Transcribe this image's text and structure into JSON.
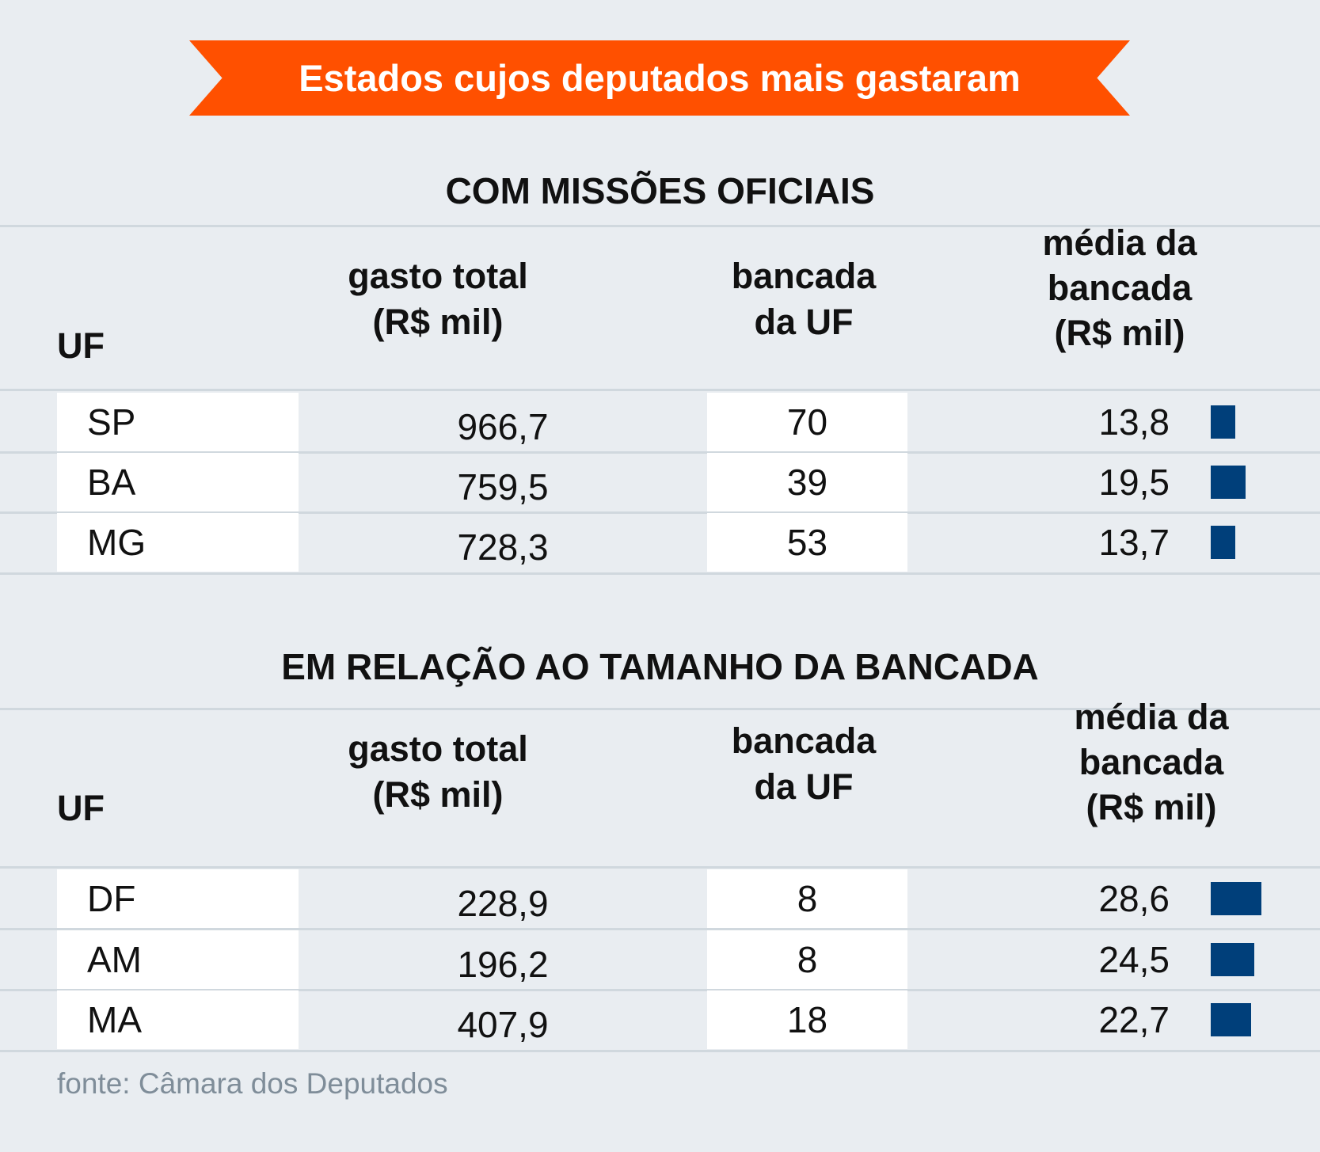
{
  "title": "Estados cujos deputados mais gastaram",
  "colors": {
    "banner": "#ff5000",
    "bar": "#003f7a",
    "background": "#e9edf1"
  },
  "headers": {
    "uf": "UF",
    "gasto": [
      "gasto total",
      "(R$ mil)"
    ],
    "bancada": [
      "bancada",
      "da UF"
    ],
    "media": [
      "média da",
      "bancada",
      "(R$ mil)"
    ]
  },
  "sections": [
    {
      "title": "COM MISSÕES OFICIAIS",
      "rows": [
        {
          "uf": "SP",
          "gasto": "966,7",
          "bancada": "70",
          "media": "13,8",
          "media_value": 13.8
        },
        {
          "uf": "BA",
          "gasto": "759,5",
          "bancada": "39",
          "media": "19,5",
          "media_value": 19.5
        },
        {
          "uf": "MG",
          "gasto": "728,3",
          "bancada": "53",
          "media": "13,7",
          "media_value": 13.7
        }
      ]
    },
    {
      "title": "EM RELAÇÃO AO TAMANHO DA BANCADA",
      "rows": [
        {
          "uf": "DF",
          "gasto": "228,9",
          "bancada": "8",
          "media": "28,6",
          "media_value": 28.6
        },
        {
          "uf": "AM",
          "gasto": "196,2",
          "bancada": "8",
          "media": "24,5",
          "media_value": 24.5
        },
        {
          "uf": "MA",
          "gasto": "407,9",
          "bancada": "18",
          "media": "22,7",
          "media_value": 22.7
        }
      ]
    }
  ],
  "source": "fonte: Câmara dos Deputados"
}
